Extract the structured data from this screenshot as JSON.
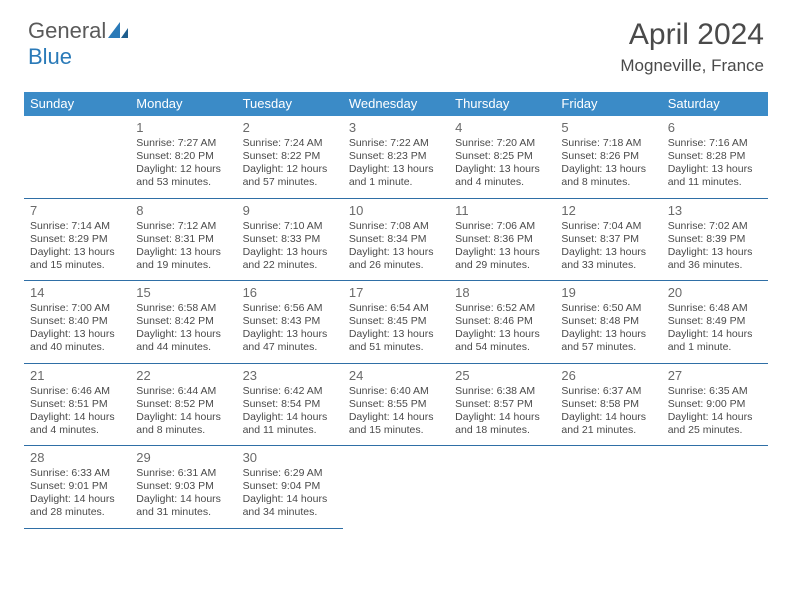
{
  "brand": {
    "part1": "General",
    "part2": "Blue"
  },
  "title": "April 2024",
  "location": "Mogneville, France",
  "colors": {
    "header_bg": "#3b8bc7",
    "header_text": "#ffffff",
    "rule": "#2f6fa6",
    "body_text": "#4a4a4a",
    "logo_gray": "#5a5a5a",
    "logo_blue": "#2a7ab8"
  },
  "dayHeaders": [
    "Sunday",
    "Monday",
    "Tuesday",
    "Wednesday",
    "Thursday",
    "Friday",
    "Saturday"
  ],
  "weeks": [
    [
      {
        "num": "",
        "lines": []
      },
      {
        "num": "1",
        "lines": [
          "Sunrise: 7:27 AM",
          "Sunset: 8:20 PM",
          "Daylight: 12 hours",
          "and 53 minutes."
        ]
      },
      {
        "num": "2",
        "lines": [
          "Sunrise: 7:24 AM",
          "Sunset: 8:22 PM",
          "Daylight: 12 hours",
          "and 57 minutes."
        ]
      },
      {
        "num": "3",
        "lines": [
          "Sunrise: 7:22 AM",
          "Sunset: 8:23 PM",
          "Daylight: 13 hours",
          "and 1 minute."
        ]
      },
      {
        "num": "4",
        "lines": [
          "Sunrise: 7:20 AM",
          "Sunset: 8:25 PM",
          "Daylight: 13 hours",
          "and 4 minutes."
        ]
      },
      {
        "num": "5",
        "lines": [
          "Sunrise: 7:18 AM",
          "Sunset: 8:26 PM",
          "Daylight: 13 hours",
          "and 8 minutes."
        ]
      },
      {
        "num": "6",
        "lines": [
          "Sunrise: 7:16 AM",
          "Sunset: 8:28 PM",
          "Daylight: 13 hours",
          "and 11 minutes."
        ]
      }
    ],
    [
      {
        "num": "7",
        "lines": [
          "Sunrise: 7:14 AM",
          "Sunset: 8:29 PM",
          "Daylight: 13 hours",
          "and 15 minutes."
        ]
      },
      {
        "num": "8",
        "lines": [
          "Sunrise: 7:12 AM",
          "Sunset: 8:31 PM",
          "Daylight: 13 hours",
          "and 19 minutes."
        ]
      },
      {
        "num": "9",
        "lines": [
          "Sunrise: 7:10 AM",
          "Sunset: 8:33 PM",
          "Daylight: 13 hours",
          "and 22 minutes."
        ]
      },
      {
        "num": "10",
        "lines": [
          "Sunrise: 7:08 AM",
          "Sunset: 8:34 PM",
          "Daylight: 13 hours",
          "and 26 minutes."
        ]
      },
      {
        "num": "11",
        "lines": [
          "Sunrise: 7:06 AM",
          "Sunset: 8:36 PM",
          "Daylight: 13 hours",
          "and 29 minutes."
        ]
      },
      {
        "num": "12",
        "lines": [
          "Sunrise: 7:04 AM",
          "Sunset: 8:37 PM",
          "Daylight: 13 hours",
          "and 33 minutes."
        ]
      },
      {
        "num": "13",
        "lines": [
          "Sunrise: 7:02 AM",
          "Sunset: 8:39 PM",
          "Daylight: 13 hours",
          "and 36 minutes."
        ]
      }
    ],
    [
      {
        "num": "14",
        "lines": [
          "Sunrise: 7:00 AM",
          "Sunset: 8:40 PM",
          "Daylight: 13 hours",
          "and 40 minutes."
        ]
      },
      {
        "num": "15",
        "lines": [
          "Sunrise: 6:58 AM",
          "Sunset: 8:42 PM",
          "Daylight: 13 hours",
          "and 44 minutes."
        ]
      },
      {
        "num": "16",
        "lines": [
          "Sunrise: 6:56 AM",
          "Sunset: 8:43 PM",
          "Daylight: 13 hours",
          "and 47 minutes."
        ]
      },
      {
        "num": "17",
        "lines": [
          "Sunrise: 6:54 AM",
          "Sunset: 8:45 PM",
          "Daylight: 13 hours",
          "and 51 minutes."
        ]
      },
      {
        "num": "18",
        "lines": [
          "Sunrise: 6:52 AM",
          "Sunset: 8:46 PM",
          "Daylight: 13 hours",
          "and 54 minutes."
        ]
      },
      {
        "num": "19",
        "lines": [
          "Sunrise: 6:50 AM",
          "Sunset: 8:48 PM",
          "Daylight: 13 hours",
          "and 57 minutes."
        ]
      },
      {
        "num": "20",
        "lines": [
          "Sunrise: 6:48 AM",
          "Sunset: 8:49 PM",
          "Daylight: 14 hours",
          "and 1 minute."
        ]
      }
    ],
    [
      {
        "num": "21",
        "lines": [
          "Sunrise: 6:46 AM",
          "Sunset: 8:51 PM",
          "Daylight: 14 hours",
          "and 4 minutes."
        ]
      },
      {
        "num": "22",
        "lines": [
          "Sunrise: 6:44 AM",
          "Sunset: 8:52 PM",
          "Daylight: 14 hours",
          "and 8 minutes."
        ]
      },
      {
        "num": "23",
        "lines": [
          "Sunrise: 6:42 AM",
          "Sunset: 8:54 PM",
          "Daylight: 14 hours",
          "and 11 minutes."
        ]
      },
      {
        "num": "24",
        "lines": [
          "Sunrise: 6:40 AM",
          "Sunset: 8:55 PM",
          "Daylight: 14 hours",
          "and 15 minutes."
        ]
      },
      {
        "num": "25",
        "lines": [
          "Sunrise: 6:38 AM",
          "Sunset: 8:57 PM",
          "Daylight: 14 hours",
          "and 18 minutes."
        ]
      },
      {
        "num": "26",
        "lines": [
          "Sunrise: 6:37 AM",
          "Sunset: 8:58 PM",
          "Daylight: 14 hours",
          "and 21 minutes."
        ]
      },
      {
        "num": "27",
        "lines": [
          "Sunrise: 6:35 AM",
          "Sunset: 9:00 PM",
          "Daylight: 14 hours",
          "and 25 minutes."
        ]
      }
    ],
    [
      {
        "num": "28",
        "lines": [
          "Sunrise: 6:33 AM",
          "Sunset: 9:01 PM",
          "Daylight: 14 hours",
          "and 28 minutes."
        ]
      },
      {
        "num": "29",
        "lines": [
          "Sunrise: 6:31 AM",
          "Sunset: 9:03 PM",
          "Daylight: 14 hours",
          "and 31 minutes."
        ]
      },
      {
        "num": "30",
        "lines": [
          "Sunrise: 6:29 AM",
          "Sunset: 9:04 PM",
          "Daylight: 14 hours",
          "and 34 minutes."
        ]
      },
      {
        "num": "",
        "lines": []
      },
      {
        "num": "",
        "lines": []
      },
      {
        "num": "",
        "lines": []
      },
      {
        "num": "",
        "lines": []
      }
    ]
  ]
}
